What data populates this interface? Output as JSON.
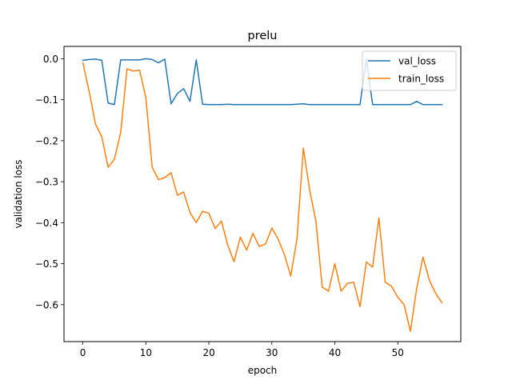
{
  "chart_data": {
    "type": "line",
    "title": "prelu",
    "xlabel": "epoch",
    "ylabel": "validation loss",
    "xlim": [
      -3,
      60
    ],
    "ylim": [
      -0.69,
      0.03
    ],
    "xticks": [
      0,
      10,
      20,
      30,
      40,
      50
    ],
    "yticks": [
      0.0,
      -0.1,
      -0.2,
      -0.3,
      -0.4,
      -0.5,
      -0.6
    ],
    "ytick_labels": [
      "0.0",
      "−0.1",
      "−0.2",
      "−0.3",
      "−0.4",
      "−0.5",
      "−0.6"
    ],
    "grid": false,
    "legend": "top-right",
    "x": [
      0,
      1,
      2,
      3,
      4,
      5,
      6,
      7,
      8,
      9,
      10,
      11,
      12,
      13,
      14,
      15,
      16,
      17,
      18,
      19,
      20,
      21,
      22,
      23,
      24,
      25,
      26,
      27,
      28,
      29,
      30,
      31,
      32,
      33,
      34,
      35,
      36,
      37,
      38,
      39,
      40,
      41,
      42,
      43,
      44,
      45,
      46,
      47,
      48,
      49,
      50,
      51,
      52,
      53,
      54,
      55,
      56,
      57
    ],
    "series": [
      {
        "name": "val_loss",
        "color": "#1f77b4",
        "values": [
          -0.004,
          -0.002,
          -0.001,
          -0.004,
          -0.108,
          -0.112,
          -0.003,
          -0.003,
          -0.003,
          -0.003,
          0.0,
          -0.002,
          -0.01,
          -0.001,
          -0.11,
          -0.085,
          -0.073,
          -0.104,
          -0.003,
          -0.111,
          -0.112,
          -0.112,
          -0.112,
          -0.111,
          -0.112,
          -0.112,
          -0.112,
          -0.112,
          -0.112,
          -0.112,
          -0.112,
          -0.112,
          -0.112,
          -0.112,
          -0.111,
          -0.11,
          -0.112,
          -0.112,
          -0.112,
          -0.112,
          -0.112,
          -0.112,
          -0.112,
          -0.112,
          -0.112,
          -0.001,
          -0.112,
          -0.112,
          -0.112,
          -0.112,
          -0.112,
          -0.112,
          -0.112,
          -0.104,
          -0.112,
          -0.112,
          -0.112,
          -0.112
        ]
      },
      {
        "name": "train_loss",
        "color": "#ff7f0e",
        "values": [
          -0.01,
          -0.08,
          -0.16,
          -0.19,
          -0.265,
          -0.245,
          -0.18,
          -0.025,
          -0.03,
          -0.028,
          -0.095,
          -0.265,
          -0.295,
          -0.29,
          -0.278,
          -0.333,
          -0.325,
          -0.375,
          -0.4,
          -0.372,
          -0.377,
          -0.414,
          -0.396,
          -0.455,
          -0.495,
          -0.435,
          -0.467,
          -0.426,
          -0.458,
          -0.452,
          -0.413,
          -0.44,
          -0.478,
          -0.53,
          -0.438,
          -0.218,
          -0.32,
          -0.397,
          -0.557,
          -0.567,
          -0.5,
          -0.567,
          -0.548,
          -0.545,
          -0.605,
          -0.496,
          -0.508,
          -0.388,
          -0.545,
          -0.555,
          -0.582,
          -0.6,
          -0.665,
          -0.56,
          -0.484,
          -0.54,
          -0.572,
          -0.595
        ]
      }
    ]
  }
}
